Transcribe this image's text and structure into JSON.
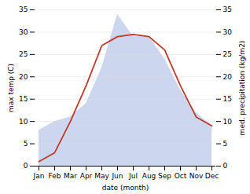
{
  "chart_data": {
    "type": "line",
    "categories": [
      "Jan",
      "Feb",
      "Mar",
      "Apr",
      "May",
      "Jun",
      "Jul",
      "Aug",
      "Sep",
      "Oct",
      "Nov",
      "Dec"
    ],
    "xlabel": "date (month)",
    "ylabel": "max temp (C)",
    "y2label": "med. precipitation (kg/m2)",
    "series": [
      {
        "type": "area",
        "axis": "y2",
        "color": "#b8c4e8",
        "values": [
          8,
          10,
          11,
          14,
          22,
          34,
          29,
          29,
          24,
          17,
          12,
          9
        ]
      },
      {
        "type": "line",
        "color": "#c0392b",
        "values": [
          1,
          3,
          10,
          18,
          27,
          29,
          29.5,
          29,
          26,
          18,
          11,
          9
        ]
      }
    ],
    "ylim": [
      0,
      35
    ],
    "yticks": [
      0,
      5,
      10,
      15,
      20,
      25,
      30,
      35
    ],
    "y2lim": [
      0,
      35
    ],
    "y2ticks": [
      0,
      5,
      10,
      15,
      20,
      25,
      30,
      35
    ],
    "grid": true
  }
}
